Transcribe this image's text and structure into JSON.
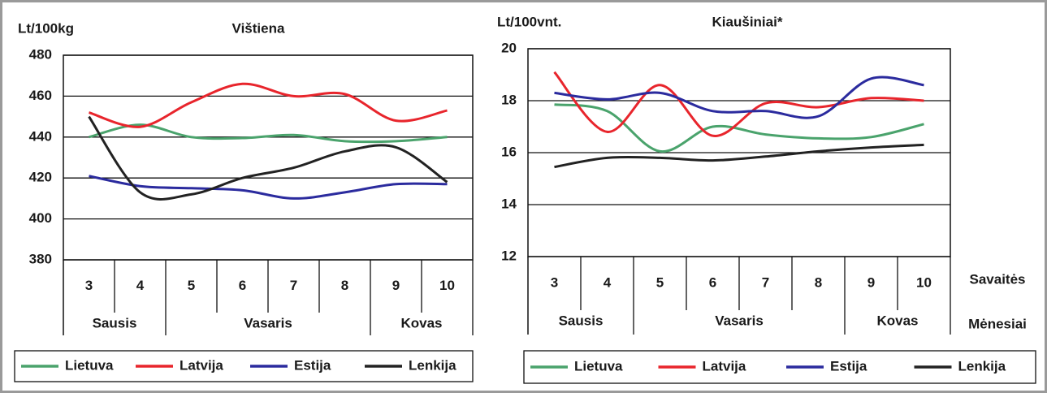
{
  "chart_data": [
    {
      "type": "line",
      "title": "Vištiena",
      "y_label": "Lt/100kg",
      "categories": [
        "3",
        "4",
        "5",
        "6",
        "7",
        "8",
        "9",
        "10"
      ],
      "months": [
        {
          "label": "Sausis",
          "span": 2
        },
        {
          "label": "Vasaris",
          "span": 4
        },
        {
          "label": "Kovas",
          "span": 2
        }
      ],
      "ylim": [
        380,
        480
      ],
      "yticks": [
        380,
        400,
        420,
        440,
        460,
        480
      ],
      "grid": true,
      "series": [
        {
          "name": "Lietuva",
          "color": "#4aa36c",
          "values": [
            440,
            446,
            440,
            439.5,
            441,
            438,
            438,
            440
          ]
        },
        {
          "name": "Latvija",
          "color": "#e8252c",
          "values": [
            452,
            445,
            457,
            466,
            460,
            461,
            448,
            453
          ]
        },
        {
          "name": "Estija",
          "color": "#2b2b9e",
          "values": [
            421,
            416,
            415,
            414,
            410,
            413,
            417,
            417
          ]
        },
        {
          "name": "Lenkija",
          "color": "#222222",
          "values": [
            450,
            413,
            412,
            420,
            425,
            433,
            435,
            418
          ]
        }
      ]
    },
    {
      "type": "line",
      "title": "Kiaušiniai*",
      "y_label": "Lt/100vnt.",
      "week_row_label": "Savaitės",
      "month_row_label": "Mėnesiai",
      "categories": [
        "3",
        "4",
        "5",
        "6",
        "7",
        "8",
        "9",
        "10"
      ],
      "months": [
        {
          "label": "Sausis",
          "span": 2
        },
        {
          "label": "Vasaris",
          "span": 4
        },
        {
          "label": "Kovas",
          "span": 2
        }
      ],
      "ylim": [
        12,
        20
      ],
      "yticks": [
        12,
        14,
        16,
        18,
        20
      ],
      "grid": true,
      "series": [
        {
          "name": "Lietuva",
          "color": "#4aa36c",
          "values": [
            17.85,
            17.6,
            16.05,
            17.0,
            16.7,
            16.55,
            16.6,
            17.1
          ]
        },
        {
          "name": "Latvija",
          "color": "#e8252c",
          "values": [
            19.1,
            16.8,
            18.6,
            16.65,
            17.9,
            17.75,
            18.1,
            18.0
          ]
        },
        {
          "name": "Estija",
          "color": "#2b2b9e",
          "values": [
            18.3,
            18.05,
            18.3,
            17.6,
            17.6,
            17.4,
            18.85,
            18.6
          ]
        },
        {
          "name": "Lenkija",
          "color": "#222222",
          "values": [
            15.45,
            15.8,
            15.8,
            15.7,
            15.85,
            16.05,
            16.2,
            16.3
          ]
        }
      ]
    }
  ]
}
